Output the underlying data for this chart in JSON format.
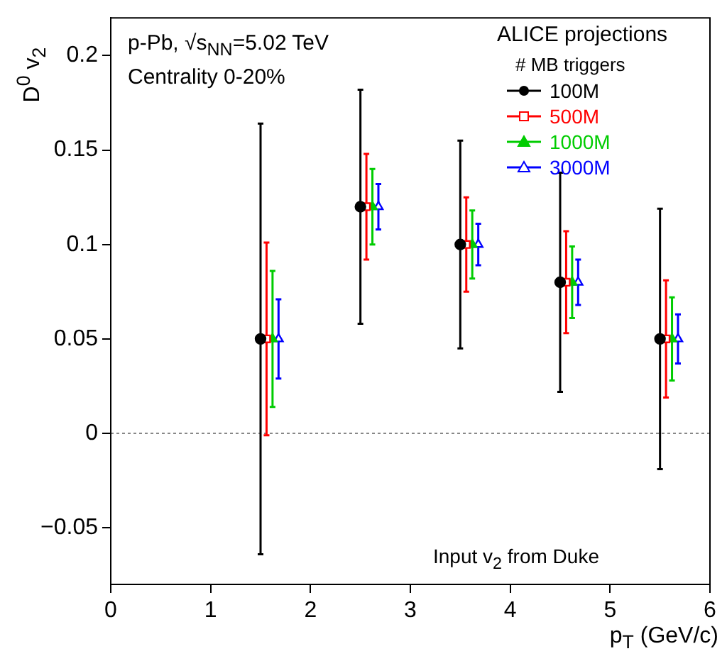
{
  "chart_data": {
    "type": "scatter",
    "xlabel": "p$_{T}$ (GeV/c)",
    "ylabel": "D$^{0}$ v$_{2}$",
    "legend_title": "# MB triggers",
    "legend": "top right",
    "grid": false,
    "annotations": [
      "p-Pb, √s$_{NN}$=5.02 TeV",
      "Centrality 0-20%",
      "ALICE projections",
      "Input v$_{2}$ from Duke"
    ],
    "xlim": [
      0,
      6
    ],
    "xticks": [
      0,
      1,
      2,
      3,
      4,
      5,
      6
    ],
    "ylim": [
      -0.08,
      0.22
    ],
    "yticks": [
      -0.05,
      0,
      0.05,
      0.1,
      0.15,
      0.2
    ],
    "ref_lines": [
      {
        "axis": "y",
        "value": 0,
        "color": "#888888",
        "line_style": "dotted"
      }
    ],
    "series": [
      {
        "name": "100M",
        "color": "#000000",
        "marker": "circle",
        "x": [
          1.5,
          2.5,
          3.5,
          4.5,
          5.5
        ],
        "values": [
          0.05,
          0.12,
          0.1,
          0.08,
          0.05
        ],
        "errors": [
          0.114,
          0.062,
          0.055,
          0.058,
          0.069
        ]
      },
      {
        "name": "500M",
        "color": "#ff0000",
        "marker": "square",
        "x": [
          1.56,
          2.56,
          3.56,
          4.56,
          5.56
        ],
        "values": [
          0.05,
          0.12,
          0.1,
          0.08,
          0.05
        ],
        "errors": [
          0.051,
          0.028,
          0.025,
          0.027,
          0.031
        ]
      },
      {
        "name": "1000M",
        "color": "#00cc00",
        "marker": "triangle",
        "x": [
          1.62,
          2.62,
          3.62,
          4.62,
          5.62
        ],
        "values": [
          0.05,
          0.12,
          0.1,
          0.08,
          0.05
        ],
        "errors": [
          0.036,
          0.02,
          0.018,
          0.019,
          0.022
        ]
      },
      {
        "name": "3000M",
        "color": "#0000ff",
        "marker": "triangle",
        "x": [
          1.68,
          2.68,
          3.68,
          4.68,
          5.68
        ],
        "values": [
          0.05,
          0.12,
          0.1,
          0.08,
          0.05
        ],
        "errors": [
          0.021,
          0.012,
          0.011,
          0.012,
          0.013
        ]
      }
    ]
  }
}
